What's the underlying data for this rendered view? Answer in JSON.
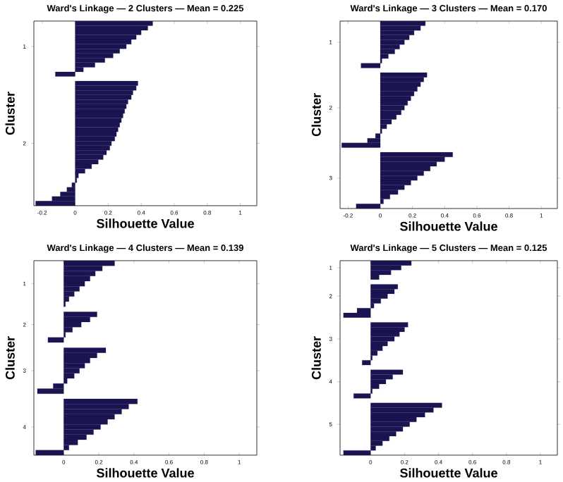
{
  "chart_data": [
    {
      "type": "bar",
      "orientation": "horizontal",
      "title": "Ward's Linkage — 2 Clusters — Mean = 0.225",
      "xlabel": "Silhouette Value",
      "ylabel": "Cluster",
      "color": "#1a1450",
      "xlim": [
        -0.25,
        1.1
      ],
      "xticks": [
        -0.2,
        0,
        0.2,
        0.4,
        0.6,
        0.8,
        1
      ],
      "categories": [
        null,
        null,
        null,
        null,
        null,
        "1",
        null,
        null,
        null,
        null,
        null,
        null,
        null,
        null,
        null,
        null,
        null,
        null,
        null,
        null,
        null,
        null,
        null,
        null,
        null,
        null,
        "2",
        null,
        null,
        null,
        null,
        null,
        null,
        null,
        null,
        null,
        null,
        null,
        null,
        null
      ],
      "values": [
        0.47,
        0.44,
        0.4,
        0.37,
        0.34,
        0.31,
        0.27,
        0.23,
        0.18,
        0.12,
        0.05,
        -0.12,
        null,
        0.38,
        0.37,
        0.35,
        0.34,
        0.32,
        0.31,
        0.3,
        0.29,
        0.28,
        0.27,
        0.26,
        0.25,
        0.24,
        0.22,
        0.21,
        0.19,
        0.17,
        0.14,
        0.1,
        0.06,
        0.02,
        0.01,
        -0.02,
        -0.05,
        -0.09,
        -0.14,
        -0.24
      ]
    },
    {
      "type": "bar",
      "orientation": "horizontal",
      "title": "Ward's Linkage — 3 Clusters — Mean = 0.170",
      "xlabel": "Silhouette Value",
      "ylabel": "Cluster",
      "color": "#1a1450",
      "xlim": [
        -0.25,
        1.1
      ],
      "xticks": [
        -0.2,
        0,
        0.2,
        0.4,
        0.6,
        0.8,
        1
      ],
      "categories": [
        null,
        null,
        null,
        null,
        "1",
        null,
        null,
        null,
        null,
        null,
        null,
        null,
        null,
        null,
        null,
        null,
        null,
        null,
        "2",
        null,
        null,
        null,
        null,
        null,
        null,
        null,
        null,
        null,
        null,
        null,
        null,
        null,
        null,
        "3",
        null,
        null,
        null,
        null,
        null,
        null
      ],
      "values": [
        0.28,
        0.25,
        0.21,
        0.18,
        0.15,
        0.12,
        0.09,
        0.05,
        0.01,
        -0.12,
        null,
        0.29,
        0.27,
        0.25,
        0.23,
        0.21,
        0.19,
        0.17,
        0.15,
        0.13,
        0.1,
        0.07,
        0.04,
        0.01,
        -0.03,
        -0.08,
        -0.24,
        null,
        0.45,
        0.4,
        0.35,
        0.31,
        0.27,
        0.23,
        0.19,
        0.15,
        0.11,
        0.06,
        0.02,
        -0.15
      ]
    },
    {
      "type": "bar",
      "orientation": "horizontal",
      "title": "Ward's Linkage — 4 Clusters — Mean = 0.139",
      "xlabel": "Silhouette Value",
      "ylabel": "Cluster",
      "color": "#1a1450",
      "xlim": [
        -0.17,
        1.1
      ],
      "xticks": [
        0,
        0.2,
        0.4,
        0.6,
        0.8,
        1
      ],
      "categories": [
        null,
        null,
        null,
        null,
        "1",
        null,
        null,
        null,
        null,
        null,
        null,
        null,
        "2",
        null,
        null,
        null,
        null,
        null,
        null,
        null,
        null,
        "3",
        null,
        null,
        null,
        null,
        null,
        null,
        null,
        null,
        null,
        null,
        "4",
        null,
        null,
        null,
        null,
        null
      ],
      "values": [
        0.29,
        0.22,
        0.18,
        0.15,
        0.12,
        0.09,
        0.06,
        0.03,
        0.01,
        null,
        0.19,
        0.15,
        0.1,
        0.05,
        0.01,
        -0.09,
        null,
        0.24,
        0.19,
        0.15,
        0.12,
        0.09,
        0.06,
        0.02,
        -0.06,
        -0.15,
        null,
        0.42,
        0.37,
        0.33,
        0.29,
        0.25,
        0.21,
        0.17,
        0.13,
        0.08,
        0.03,
        -0.16
      ]
    },
    {
      "type": "bar",
      "orientation": "horizontal",
      "title": "Ward's Linkage — 5 Clusters — Mean = 0.125",
      "xlabel": "Silhouette Value",
      "ylabel": "Cluster",
      "color": "#1a1450",
      "xlim": [
        -0.18,
        1.1
      ],
      "xticks": [
        0,
        0.2,
        0.4,
        0.6,
        0.8,
        1
      ],
      "categories": [
        null,
        "1",
        null,
        null,
        null,
        null,
        null,
        "2",
        null,
        null,
        null,
        null,
        null,
        null,
        null,
        null,
        "3",
        null,
        null,
        null,
        null,
        null,
        null,
        null,
        null,
        "4",
        null,
        null,
        null,
        null,
        null,
        null,
        null,
        null,
        "5",
        null,
        null,
        null,
        null,
        null,
        null
      ],
      "values": [
        0.24,
        0.18,
        0.12,
        0.05,
        null,
        0.16,
        0.14,
        0.1,
        0.06,
        0.02,
        -0.08,
        -0.16,
        null,
        0.22,
        0.2,
        0.17,
        0.14,
        0.1,
        0.07,
        0.04,
        0.01,
        -0.05,
        null,
        0.19,
        0.13,
        0.09,
        0.05,
        0.01,
        -0.1,
        null,
        0.42,
        0.37,
        0.32,
        0.27,
        0.23,
        0.19,
        0.15,
        0.11,
        0.07,
        0.03,
        -0.16
      ]
    }
  ]
}
